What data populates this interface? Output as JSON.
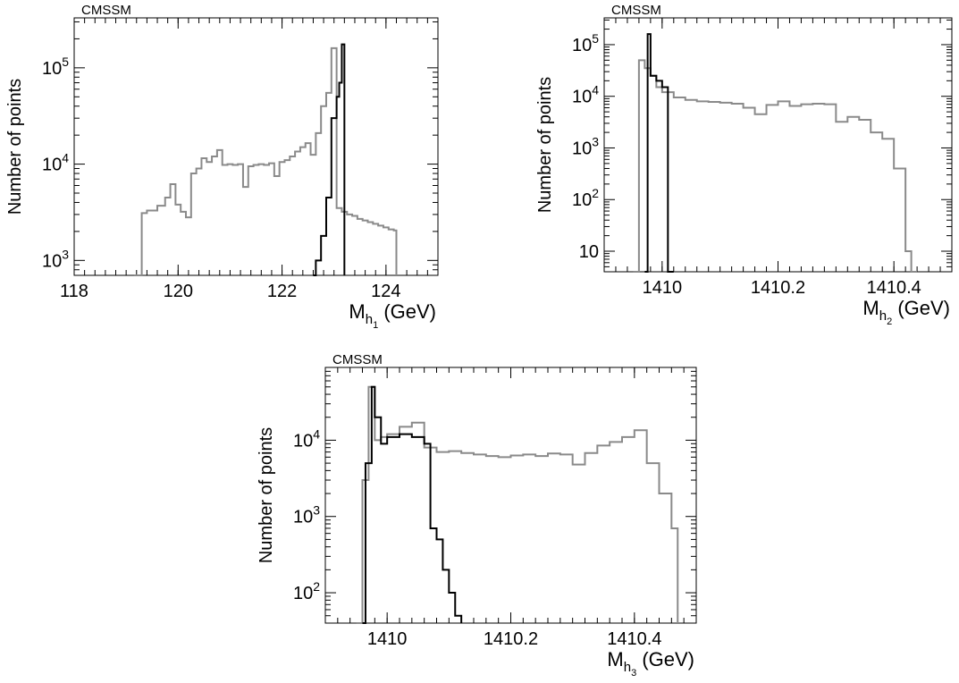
{
  "colors": {
    "all_points": "#8a8a8a",
    "selected_points": "#000000"
  },
  "chart_data": [
    {
      "type": "line",
      "title": "CMSSM",
      "ylabel": "Number of points",
      "xlabel": {
        "main": "M",
        "sub": "h",
        "subsub": "1",
        "unit": "(GeV)"
      },
      "ylog": true,
      "xlim": [
        118,
        125
      ],
      "ylim": [
        700,
        330000
      ],
      "xticks": [
        118,
        120,
        122,
        124
      ],
      "xticklabels": [
        "118",
        "120",
        "122",
        "124"
      ],
      "yticks": [
        1000,
        10000,
        100000
      ],
      "yticklabels": [
        {
          "base": "10",
          "exp": "3"
        },
        {
          "base": "10",
          "exp": "4"
        },
        {
          "base": "10",
          "exp": "5"
        }
      ],
      "series": [
        {
          "style": "grey",
          "x": [
            119.15,
            119.3,
            119.4,
            119.6,
            119.75,
            119.85,
            119.95,
            120.05,
            120.15,
            120.25,
            120.35,
            120.45,
            120.55,
            120.65,
            120.75,
            120.85,
            120.95,
            121.05,
            121.15,
            121.25,
            121.35,
            121.45,
            121.55,
            121.65,
            121.75,
            121.85,
            121.95,
            122.05,
            122.15,
            122.25,
            122.35,
            122.45,
            122.55,
            122.65,
            122.75,
            122.85,
            122.95,
            123.05,
            123.15,
            123.25,
            123.35,
            123.45,
            123.55,
            123.65,
            123.75,
            123.85,
            123.95,
            124.05,
            124.15,
            124.2
          ],
          "y": [
            700,
            3100,
            3300,
            3700,
            4500,
            6200,
            3800,
            3200,
            2800,
            8000,
            9000,
            11500,
            10500,
            12000,
            14000,
            9800,
            10000,
            9800,
            10000,
            5800,
            9500,
            9800,
            10000,
            9800,
            10200,
            7500,
            10500,
            11000,
            12000,
            13500,
            15000,
            16500,
            12500,
            21000,
            40000,
            55000,
            160000,
            3500,
            3200,
            3000,
            2900,
            2700,
            2600,
            2500,
            2400,
            2300,
            2200,
            2100,
            2050,
            700
          ]
        },
        {
          "style": "black",
          "x": [
            122.6,
            122.65,
            122.75,
            122.85,
            122.95,
            123.05,
            123.1,
            123.15,
            123.2
          ],
          "y": [
            700,
            1000,
            1800,
            4500,
            30000,
            50000,
            70000,
            175000,
            700
          ]
        }
      ]
    },
    {
      "type": "line",
      "title": "CMSSM",
      "ylabel": "Number of points",
      "xlabel": {
        "main": "M",
        "sub": "h",
        "subsub": "2",
        "unit": "(GeV)"
      },
      "ylog": true,
      "xlim": [
        1409.9,
        1410.5
      ],
      "ylim": [
        4,
        330000
      ],
      "xticks": [
        1410,
        1410.2,
        1410.4
      ],
      "xticklabels": [
        "1410",
        "1410.2",
        "1410.4"
      ],
      "yticks": [
        10,
        100,
        1000,
        10000,
        100000
      ],
      "yticklabels": [
        {
          "base": "10",
          "exp": ""
        },
        {
          "base": "10",
          "exp": "2"
        },
        {
          "base": "10",
          "exp": "3"
        },
        {
          "base": "10",
          "exp": "4"
        },
        {
          "base": "10",
          "exp": "5"
        }
      ],
      "series": [
        {
          "style": "grey",
          "x": [
            1409.95,
            1409.96,
            1409.97,
            1409.98,
            1409.99,
            1410.0,
            1410.02,
            1410.04,
            1410.06,
            1410.08,
            1410.1,
            1410.12,
            1410.14,
            1410.16,
            1410.18,
            1410.2,
            1410.22,
            1410.24,
            1410.26,
            1410.28,
            1410.3,
            1410.32,
            1410.34,
            1410.36,
            1410.38,
            1410.4,
            1410.42,
            1410.43,
            1410.44
          ],
          "y": [
            4,
            50000,
            35000,
            25000,
            15000,
            12000,
            9500,
            8500,
            8000,
            7800,
            7500,
            7200,
            6000,
            4500,
            6800,
            8000,
            6500,
            7000,
            7200,
            7000,
            3200,
            4000,
            3500,
            2000,
            1500,
            400,
            10,
            4,
            4
          ]
        },
        {
          "style": "black",
          "x": [
            1409.97,
            1409.975,
            1409.98,
            1409.99,
            1410.0,
            1410.01,
            1410.02
          ],
          "y": [
            4,
            160000,
            25000,
            20000,
            15000,
            4,
            4
          ]
        }
      ]
    },
    {
      "type": "line",
      "title": "CMSSM",
      "ylabel": "Number of points",
      "xlabel": {
        "main": "M",
        "sub": "h",
        "subsub": "3",
        "unit": "(GeV)"
      },
      "ylog": true,
      "xlim": [
        1409.9,
        1410.5
      ],
      "ylim": [
        40,
        90000
      ],
      "xticks": [
        1410,
        1410.2,
        1410.4
      ],
      "xticklabels": [
        "1410",
        "1410.2",
        "1410.4"
      ],
      "yticks": [
        100,
        1000,
        10000
      ],
      "yticklabels": [
        {
          "base": "10",
          "exp": "2"
        },
        {
          "base": "10",
          "exp": "3"
        },
        {
          "base": "10",
          "exp": "4"
        }
      ],
      "series": [
        {
          "style": "grey",
          "x": [
            1409.95,
            1409.96,
            1409.97,
            1409.98,
            1409.99,
            1410.0,
            1410.02,
            1410.04,
            1410.06,
            1410.08,
            1410.1,
            1410.12,
            1410.14,
            1410.16,
            1410.18,
            1410.2,
            1410.22,
            1410.24,
            1410.26,
            1410.28,
            1410.3,
            1410.32,
            1410.34,
            1410.36,
            1410.38,
            1410.4,
            1410.42,
            1410.44,
            1410.46,
            1410.47
          ],
          "y": [
            40,
            3000,
            50000,
            10000,
            11000,
            12000,
            15000,
            17000,
            8000,
            7000,
            7200,
            6800,
            6500,
            6200,
            6000,
            6300,
            6500,
            6200,
            6700,
            6500,
            4800,
            6800,
            8500,
            9500,
            11000,
            13500,
            5000,
            2000,
            700,
            40
          ]
        },
        {
          "style": "black",
          "x": [
            1409.96,
            1409.965,
            1409.975,
            1409.98,
            1409.99,
            1410.0,
            1410.02,
            1410.04,
            1410.06,
            1410.07,
            1410.08,
            1410.09,
            1410.1,
            1410.11,
            1410.12
          ],
          "y": [
            40,
            5000,
            50000,
            20000,
            9000,
            11000,
            12000,
            11000,
            9000,
            700,
            500,
            200,
            100,
            50,
            40
          ]
        }
      ]
    }
  ]
}
